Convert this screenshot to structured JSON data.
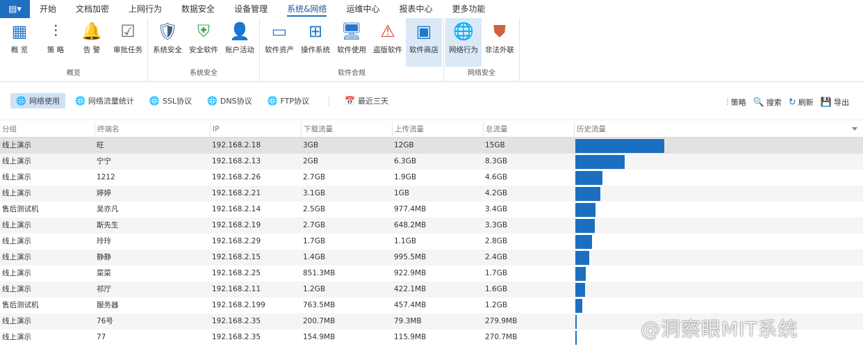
{
  "menubar": {
    "items": [
      "开始",
      "文档加密",
      "上网行为",
      "数据安全",
      "设备管理",
      "系统&网络",
      "运维中心",
      "报表中心",
      "更多功能"
    ],
    "active": "系统&网络"
  },
  "ribbon": {
    "groups": [
      {
        "label": "概览",
        "items": [
          {
            "label": "概 览",
            "icon": "grid-icon"
          },
          {
            "label": "策 略",
            "icon": "sliders-icon"
          },
          {
            "label": "告 警",
            "icon": "bell-icon"
          },
          {
            "label": "审批任务",
            "icon": "clipboard-check-icon"
          }
        ]
      },
      {
        "label": "系统安全",
        "items": [
          {
            "label": "系统安全",
            "icon": "shield-monitor-icon"
          },
          {
            "label": "安全软件",
            "icon": "shield-icon"
          },
          {
            "label": "账户活动",
            "icon": "user-icon"
          }
        ]
      },
      {
        "label": "软件合规",
        "items": [
          {
            "label": "软件资产",
            "icon": "window-icon"
          },
          {
            "label": "操作系统",
            "icon": "windows-icon"
          },
          {
            "label": "软件使用",
            "icon": "devices-icon"
          },
          {
            "label": "盗版软件",
            "icon": "warning-window-icon"
          },
          {
            "label": "软件商店",
            "icon": "store-icon"
          }
        ]
      },
      {
        "label": "网络安全",
        "items": [
          {
            "label": "网络行为",
            "icon": "globe-icon"
          },
          {
            "label": "非法外联",
            "icon": "firewall-icon"
          }
        ]
      }
    ],
    "selected": [
      "软件商店",
      "网络行为"
    ]
  },
  "subtabs": [
    {
      "label": "网络使用",
      "icon": "globe-icon"
    },
    {
      "label": "网络流量统计",
      "icon": "globe-chart-icon"
    },
    {
      "label": "SSL协议",
      "icon": "ssl-icon"
    },
    {
      "label": "DNS协议",
      "icon": "dns-icon"
    },
    {
      "label": "FTP协议",
      "icon": "ftp-icon"
    }
  ],
  "date_filter": {
    "label": "最近三天",
    "icon": "calendar-icon"
  },
  "tools": [
    {
      "label": "策略",
      "icon": "sliders-icon"
    },
    {
      "label": "搜索",
      "icon": "search-icon"
    },
    {
      "label": "刷新",
      "icon": "refresh-icon"
    },
    {
      "label": "导出",
      "icon": "export-icon"
    }
  ],
  "table": {
    "columns": [
      "分组",
      "终端名",
      "IP",
      "下载流量",
      "上传流量",
      "总流量",
      "历史流量"
    ],
    "rows": [
      [
        "线上演示",
        "旺",
        "192.168.2.18",
        "3GB",
        "12GB",
        "15GB"
      ],
      [
        "线上演示",
        "宁宁",
        "192.168.2.13",
        "2GB",
        "6.3GB",
        "8.3GB"
      ],
      [
        "线上演示",
        "1212",
        "192.168.2.26",
        "2.7GB",
        "1.9GB",
        "4.6GB"
      ],
      [
        "线上演示",
        "婷婷",
        "192.168.2.21",
        "3.1GB",
        "1GB",
        "4.2GB"
      ],
      [
        "售后测试机",
        "吴亦凡",
        "192.168.2.14",
        "2.5GB",
        "977.4MB",
        "3.4GB"
      ],
      [
        "线上演示",
        "斯先生",
        "192.168.2.19",
        "2.7GB",
        "648.2MB",
        "3.3GB"
      ],
      [
        "线上演示",
        "玲玲",
        "192.168.2.29",
        "1.7GB",
        "1.1GB",
        "2.8GB"
      ],
      [
        "线上演示",
        "静静",
        "192.168.2.15",
        "1.4GB",
        "995.5MB",
        "2.4GB"
      ],
      [
        "线上演示",
        "菜菜",
        "192.168.2.25",
        "851.3MB",
        "922.9MB",
        "1.7GB"
      ],
      [
        "线上演示",
        "祁厅",
        "192.168.2.11",
        "1.2GB",
        "422.1MB",
        "1.6GB"
      ],
      [
        "售后测试机",
        "服务器",
        "192.168.2.199",
        "763.5MB",
        "457.4MB",
        "1.2GB"
      ],
      [
        "线上演示",
        "76号",
        "192.168.2.35",
        "200.7MB",
        "79.3MB",
        "279.9MB"
      ],
      [
        "线上演示",
        "77",
        "192.168.2.35",
        "154.9MB",
        "115.9MB",
        "270.7MB"
      ]
    ]
  },
  "colors": {
    "accent": "#1e6fc0",
    "bar": "#1c6ec0",
    "selected": "#dbe9f7"
  },
  "watermark": "@洞察眼MIT系统"
}
